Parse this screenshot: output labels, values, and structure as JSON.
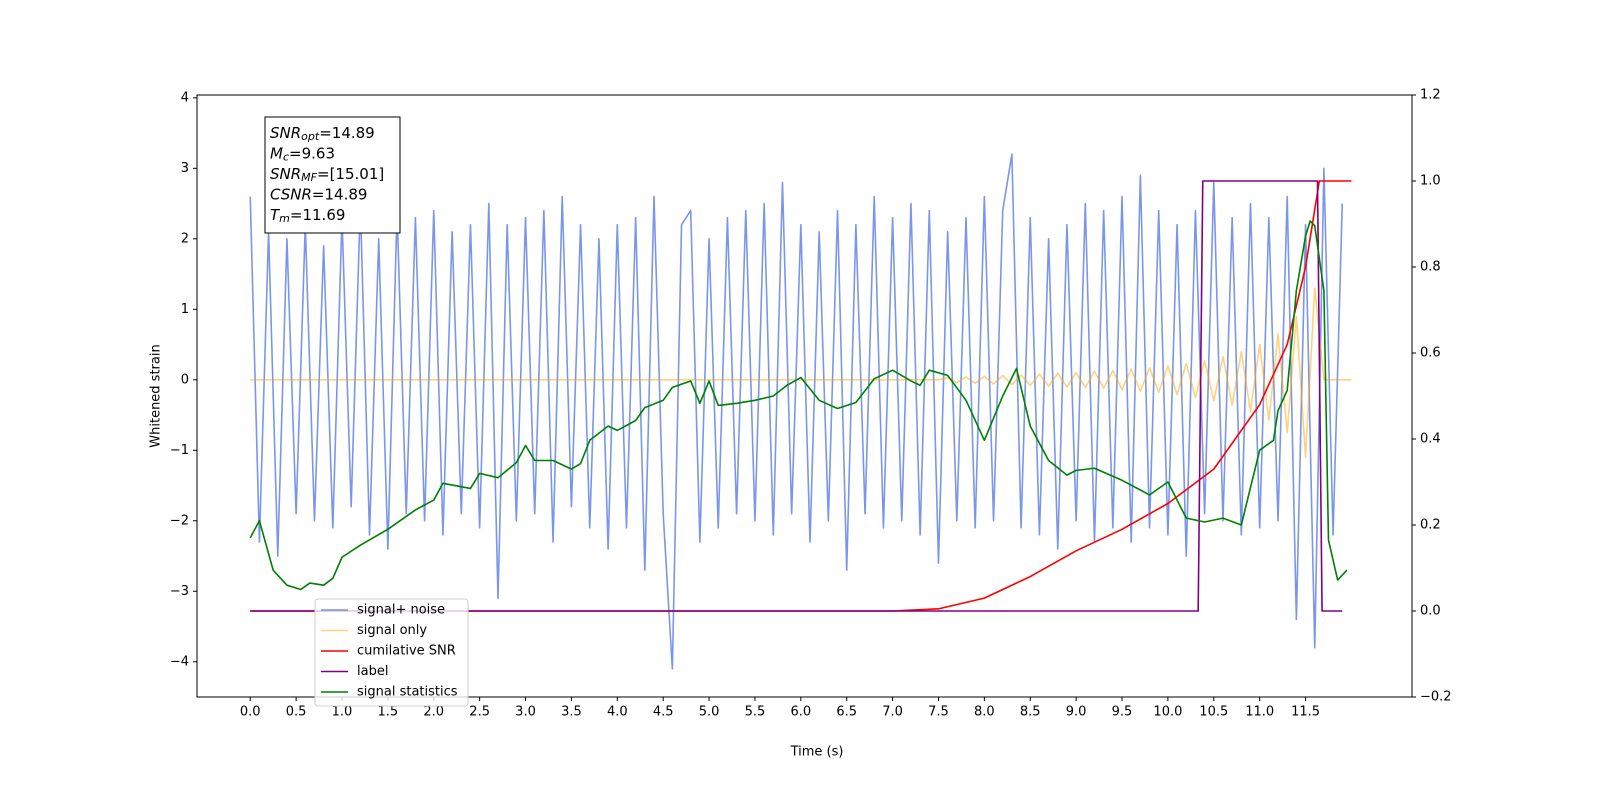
{
  "chart_data": {
    "type": "line",
    "x_label": "Time (s)",
    "y_label": "Whitened strain",
    "xlim": [
      -0.58,
      12.66
    ],
    "ylim": [
      -4.5,
      4.04
    ],
    "y2lim": [
      -0.2,
      1.2
    ],
    "xticks": [
      {
        "value": 0,
        "label": "0.0"
      },
      0.5,
      {
        "value": 1,
        "label": "1.0"
      },
      1.5,
      {
        "value": 2,
        "label": "2.0"
      },
      2.5,
      {
        "value": 3,
        "label": "3.0"
      },
      3.5,
      {
        "value": 4,
        "label": "4.0"
      },
      4.5,
      {
        "value": 5,
        "label": "5.0"
      },
      5.5,
      {
        "value": 6,
        "label": "6.0"
      },
      6.5,
      {
        "value": 7,
        "label": "7.0"
      },
      7.5,
      {
        "value": 8,
        "label": "8.0"
      },
      8.5,
      {
        "value": 9,
        "label": "9.0"
      },
      9.5,
      {
        "value": 10,
        "label": "10.0"
      },
      10.5,
      {
        "value": 11,
        "label": "11.0"
      },
      11.5
    ],
    "yticks": [
      {
        "value": -4,
        "label": "−4"
      },
      {
        "value": -3,
        "label": "−3"
      },
      {
        "value": -2,
        "label": "−2"
      },
      {
        "value": -1,
        "label": "−1"
      },
      0,
      1,
      2,
      3,
      4
    ],
    "y2ticks": [
      {
        "value": -0.2,
        "label": "−0.2"
      },
      {
        "value": 0,
        "label": "0.0"
      },
      0.2,
      0.4,
      0.6,
      0.8,
      {
        "value": 1,
        "label": "1.0"
      },
      1.2
    ],
    "legend": "lower left",
    "annotation": [
      {
        "base": "SNR",
        "sub": "opt",
        "text": "=14.89"
      },
      {
        "base": "M",
        "sub": "c",
        "text": "=9.63"
      },
      {
        "base": "SNR",
        "sub": "MF",
        "text": "=[15.01]"
      },
      {
        "base": "CSNR",
        "sub": null,
        "text": "=14.89"
      },
      {
        "base": "T",
        "sub": "m",
        "text": "=11.69"
      }
    ],
    "series": [
      {
        "name": "signal+ noise",
        "color": "#4169e1",
        "alpha": 0.7,
        "axis": "y",
        "x": [
          0,
          0.1,
          0.2,
          0.3,
          0.4,
          0.5,
          0.6,
          0.7,
          0.8,
          0.9,
          1,
          1.1,
          1.2,
          1.3,
          1.4,
          1.5,
          1.6,
          1.7,
          1.8,
          1.9,
          2,
          2.1,
          2.2,
          2.3,
          2.4,
          2.5,
          2.6,
          2.7,
          2.8,
          2.9,
          3,
          3.1,
          3.2,
          3.3,
          3.4,
          3.5,
          3.6,
          3.7,
          3.8,
          3.9,
          4,
          4.1,
          4.2,
          4.3,
          4.4,
          4.5,
          4.6,
          4.7,
          4.8,
          4.9,
          5,
          5.1,
          5.2,
          5.3,
          5.4,
          5.5,
          5.6,
          5.7,
          5.8,
          5.9,
          6,
          6.1,
          6.2,
          6.3,
          6.4,
          6.5,
          6.6,
          6.7,
          6.8,
          6.9,
          7,
          7.1,
          7.2,
          7.3,
          7.4,
          7.5,
          7.6,
          7.7,
          7.8,
          7.9,
          8,
          8.1,
          8.2,
          8.3,
          8.4,
          8.5,
          8.6,
          8.7,
          8.8,
          8.9,
          9,
          9.1,
          9.2,
          9.3,
          9.4,
          9.5,
          9.6,
          9.7,
          9.8,
          9.9,
          10,
          10.1,
          10.2,
          10.3,
          10.4,
          10.5,
          10.6,
          10.7,
          10.8,
          10.9,
          11,
          11.1,
          11.2,
          11.3,
          11.4,
          11.5,
          11.6,
          11.7,
          11.8,
          11.9
        ],
        "values": [
          2.6,
          -2.3,
          2.1,
          -2.5,
          2.0,
          -1.9,
          2.2,
          -2.0,
          1.9,
          -2.1,
          2.3,
          -1.8,
          2.5,
          -2.2,
          2.0,
          -2.4,
          2.4,
          -1.9,
          2.3,
          -2.0,
          2.4,
          -2.2,
          2.1,
          -1.9,
          2.2,
          -2.1,
          2.5,
          -3.1,
          2.2,
          -2.0,
          2.3,
          -1.9,
          2.4,
          -2.3,
          2.6,
          -1.8,
          2.2,
          -2.1,
          2.0,
          -2.4,
          2.2,
          -2.1,
          2.3,
          -2.7,
          2.6,
          -1.9,
          -4.1,
          2.2,
          2.4,
          -2.3,
          2.0,
          -2.1,
          2.3,
          -1.9,
          2.4,
          -2.0,
          2.5,
          -2.2,
          2.8,
          -1.9,
          2.2,
          -2.3,
          2.1,
          -2.0,
          2.4,
          -2.7,
          2.2,
          -1.9,
          2.6,
          -2.1,
          2.3,
          -2.0,
          2.5,
          -2.2,
          2.4,
          -2.6,
          2.1,
          -2.0,
          2.3,
          -2.1,
          2.6,
          -2.0,
          2.4,
          3.2,
          -2.1,
          2.3,
          -2.2,
          2.0,
          -2.4,
          2.2,
          -2.0,
          2.5,
          -2.3,
          2.4,
          -2.1,
          2.6,
          -2.3,
          2.9,
          -2.1,
          2.4,
          -2.2,
          2.2,
          -2.5,
          2.4,
          -1.9,
          2.8,
          -2.0,
          2.3,
          -2.2,
          2.5,
          -2.1,
          2.3,
          -2.0,
          2.6,
          -3.4,
          2.2,
          -3.8,
          3.0,
          -2.2,
          2.5
        ]
      },
      {
        "name": "signal only",
        "color": "#ffa500",
        "alpha": 0.5,
        "axis": "y",
        "x": [
          0,
          7.5,
          7.6,
          7.7,
          7.8,
          7.9,
          8,
          8.1,
          8.2,
          8.3,
          8.4,
          8.5,
          8.6,
          8.7,
          8.8,
          8.9,
          9,
          9.1,
          9.2,
          9.3,
          9.4,
          9.5,
          9.6,
          9.7,
          9.8,
          9.9,
          10,
          10.1,
          10.2,
          10.3,
          10.4,
          10.5,
          10.6,
          10.7,
          10.8,
          10.9,
          11,
          11.1,
          11.2,
          11.3,
          11.4,
          11.5,
          11.6,
          11.7,
          12
        ],
        "values": [
          0,
          0,
          0.03,
          -0.04,
          0.04,
          -0.05,
          0.05,
          -0.06,
          0.06,
          -0.07,
          0.07,
          -0.08,
          0.08,
          -0.09,
          0.09,
          -0.1,
          0.1,
          -0.11,
          0.12,
          -0.12,
          0.13,
          -0.14,
          0.15,
          -0.16,
          0.17,
          -0.18,
          0.2,
          -0.21,
          0.23,
          -0.25,
          0.27,
          -0.3,
          0.33,
          -0.36,
          0.4,
          -0.45,
          0.5,
          -0.57,
          0.65,
          -0.75,
          0.9,
          -1.1,
          1.3,
          0,
          0
        ]
      },
      {
        "name": "cumilative SNR",
        "color": "#ff0000",
        "axis": "y2",
        "x": [
          0,
          7,
          7.5,
          8,
          8.5,
          9,
          9.5,
          10,
          10.5,
          11,
          11.3,
          11.5,
          11.65,
          12
        ],
        "values": [
          0,
          0,
          0.005,
          0.03,
          0.08,
          0.14,
          0.19,
          0.25,
          0.33,
          0.48,
          0.62,
          0.8,
          1,
          1
        ]
      },
      {
        "name": "label",
        "color": "#800080",
        "axis": "y2",
        "x": [
          0,
          10.33,
          10.38,
          11.63,
          11.68,
          11.9
        ],
        "values": [
          0,
          0,
          1,
          1,
          0,
          0
        ]
      },
      {
        "name": "signal statistics",
        "color": "#008000",
        "axis": "y2",
        "x": [
          0,
          0.1,
          0.25,
          0.4,
          0.55,
          0.65,
          0.8,
          0.9,
          1,
          1.2,
          1.5,
          1.8,
          2,
          2.1,
          2.4,
          2.5,
          2.7,
          2.9,
          3,
          3.1,
          3.3,
          3.5,
          3.6,
          3.7,
          3.9,
          4,
          4.2,
          4.3,
          4.5,
          4.6,
          4.8,
          4.9,
          5,
          5.1,
          5.3,
          5.5,
          5.7,
          5.85,
          6,
          6.2,
          6.4,
          6.6,
          6.8,
          7,
          7.2,
          7.3,
          7.4,
          7.6,
          7.8,
          8,
          8.2,
          8.35,
          8.5,
          8.7,
          8.9,
          9,
          9.2,
          9.5,
          9.8,
          10,
          10.2,
          10.4,
          10.6,
          10.8,
          11,
          11.15,
          11.2,
          11.3,
          11.4,
          11.5,
          11.55,
          11.6,
          11.7,
          11.75,
          11.85,
          11.95
        ],
        "values": [
          0.17,
          0.21,
          0.095,
          0.06,
          0.05,
          0.065,
          0.06,
          0.076,
          0.125,
          0.153,
          0.19,
          0.235,
          0.258,
          0.297,
          0.285,
          0.32,
          0.31,
          0.345,
          0.385,
          0.35,
          0.35,
          0.33,
          0.343,
          0.397,
          0.43,
          0.42,
          0.443,
          0.473,
          0.49,
          0.52,
          0.535,
          0.483,
          0.535,
          0.478,
          0.483,
          0.49,
          0.5,
          0.525,
          0.543,
          0.49,
          0.471,
          0.485,
          0.54,
          0.56,
          0.535,
          0.525,
          0.56,
          0.548,
          0.49,
          0.397,
          0.5,
          0.564,
          0.43,
          0.35,
          0.316,
          0.327,
          0.332,
          0.304,
          0.27,
          0.3,
          0.216,
          0.207,
          0.216,
          0.2,
          0.374,
          0.397,
          0.466,
          0.513,
          0.745,
          0.872,
          0.907,
          0.896,
          0.745,
          0.165,
          0.072,
          0.095
        ]
      }
    ]
  }
}
